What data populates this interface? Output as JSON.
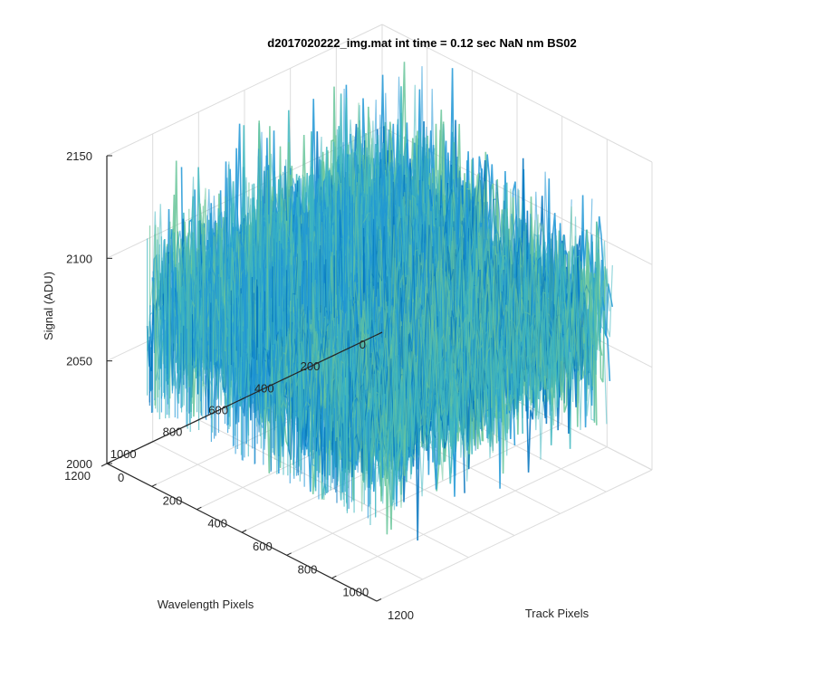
{
  "chart_data": {
    "type": "surface",
    "title": "d2017020222_img.mat int time = 0.12 sec  NaN nm BS02",
    "xlabel": "Track Pixels",
    "ylabel": "Wavelength Pixels",
    "zlabel": "Signal (ADU)",
    "xlim": [
      0,
      1200
    ],
    "ylim": [
      0,
      1200
    ],
    "zlim": [
      2000,
      2150
    ],
    "xticks": [
      "0",
      "200",
      "400",
      "600",
      "800",
      "1000",
      "1200"
    ],
    "yticks": [
      "0",
      "200",
      "400",
      "600",
      "800",
      "1000",
      "1200"
    ],
    "zticks": [
      "2000",
      "2050",
      "2100",
      "2150"
    ],
    "data_extent": {
      "x": [
        0,
        1024
      ],
      "y": [
        0,
        1024
      ]
    },
    "signal_mean": 2065,
    "signal_min": 2015,
    "signal_max": 2150,
    "colormap": [
      "#0072bd",
      "#1f96d6",
      "#3fb7c0",
      "#69c59a",
      "#a9c95f",
      "#e0c03a"
    ],
    "grid": true
  }
}
